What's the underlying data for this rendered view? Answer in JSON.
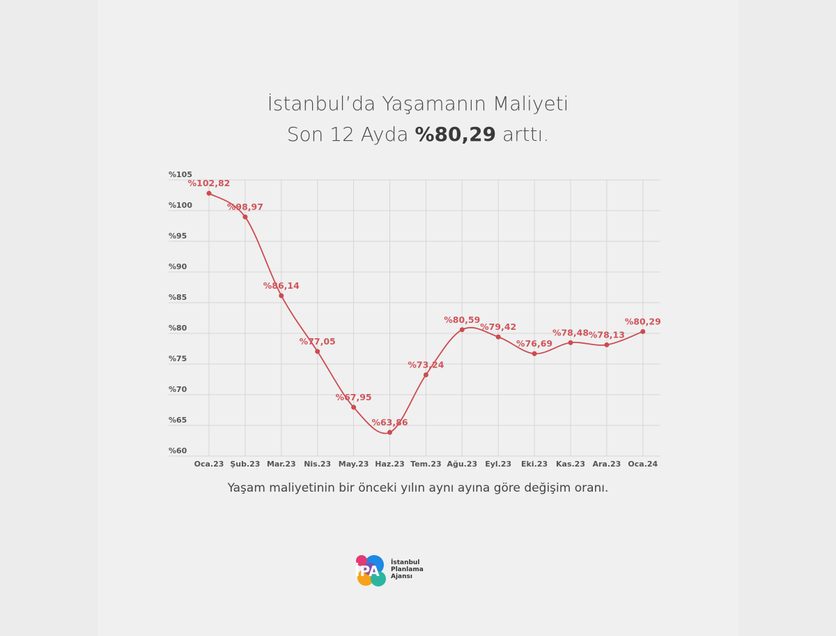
{
  "header": {
    "title_line1": "İstanbul’da Yaşamanın Maliyeti",
    "title_line2_prefix": "Son 12 Ayda ",
    "title_line2_highlight": "%80,29",
    "title_line2_suffix": " arttı."
  },
  "caption": "Yaşam maliyetinin bir önceki yılın aynı ayına  göre değişim oranı.",
  "logo": {
    "mark": "İPA",
    "line1": "İstanbul",
    "line2": "Planlama",
    "line3": "Ajansı"
  },
  "chart_data": {
    "type": "line",
    "title": "",
    "xlabel": "",
    "ylabel": "",
    "categories": [
      "Oca.23",
      "Şub.23",
      "Mar.23",
      "Nis.23",
      "May.23",
      "Haz.23",
      "Tem.23",
      "Ağu.23",
      "Eyl.23",
      "Eki.23",
      "Kas.23",
      "Ara.23",
      "Oca.24"
    ],
    "values": [
      102.82,
      98.97,
      86.14,
      77.05,
      67.95,
      63.86,
      73.24,
      80.59,
      79.42,
      76.69,
      78.48,
      78.13,
      80.29
    ],
    "data_labels": [
      "%102,82",
      "%98,97",
      "%86,14",
      "%77,05",
      "%67,95",
      "%63,86",
      "%73,24",
      "%80,59",
      "%79,42",
      "%76,69",
      "%78,48",
      "%78,13",
      "%80,29"
    ],
    "ylim": [
      60,
      105
    ],
    "yticks": [
      "%60",
      "%65",
      "%70",
      "%75",
      "%80",
      "%85",
      "%90",
      "%95",
      "%100",
      "%105"
    ],
    "grid": true,
    "legend": "none",
    "line_color": "#cc4b4f"
  }
}
